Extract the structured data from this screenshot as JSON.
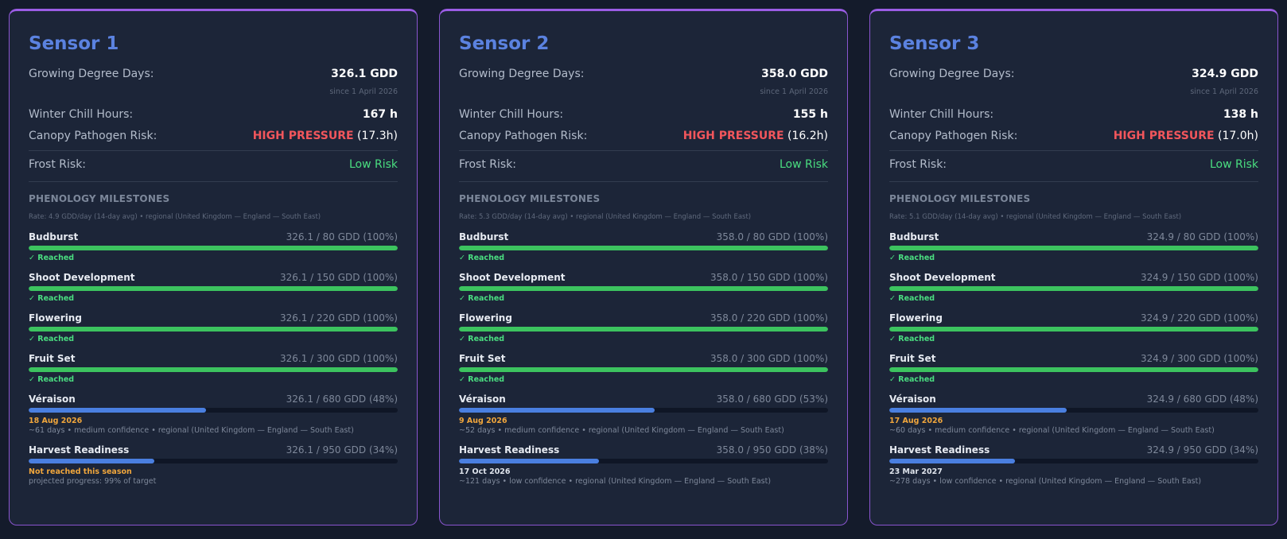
{
  "sensors": [
    {
      "title": "Sensor 1",
      "gdd_label": "Growing Degree Days:",
      "gdd_value": "326.1 GDD",
      "since": "since 1 April 2026",
      "chill_label": "Winter Chill Hours:",
      "chill_value": "167 h",
      "canopy_label": "Canopy Pathogen Risk:",
      "canopy_level": "HIGH PRESSURE",
      "canopy_hours": "(17.3h)",
      "frost_label": "Frost Risk:",
      "frost_value": "Low Risk",
      "section_title": "PHENOLOGY MILESTONES",
      "rate": "Rate: 4.9 GDD/day (14-day avg) • regional (United Kingdom — England — South East)",
      "milestones": [
        {
          "name": "Budburst",
          "progress": "326.1 / 80 GDD (100%)",
          "fraction": 1.0,
          "status": "✓ Reached"
        },
        {
          "name": "Shoot Development",
          "progress": "326.1 / 150 GDD (100%)",
          "fraction": 1.0,
          "status": "✓ Reached"
        },
        {
          "name": "Flowering",
          "progress": "326.1 / 220 GDD (100%)",
          "fraction": 1.0,
          "status": "✓ Reached"
        },
        {
          "name": "Fruit Set",
          "progress": "326.1 / 300 GDD (100%)",
          "fraction": 1.0,
          "status": "✓ Reached"
        },
        {
          "name": "Véraison",
          "progress": "326.1 / 680 GDD (48%)",
          "fraction": 0.48,
          "date": "18 Aug 2026",
          "date_color": "orange",
          "note": "~61 days • medium confidence • regional (United Kingdom — England — South East)"
        },
        {
          "name": "Harvest Readiness",
          "progress": "326.1 / 950 GDD (34%)",
          "fraction": 0.34,
          "date": "Not reached this season",
          "date_color": "orange",
          "note": "projected progress: 99% of target"
        }
      ]
    },
    {
      "title": "Sensor 2",
      "gdd_label": "Growing Degree Days:",
      "gdd_value": "358.0 GDD",
      "since": "since 1 April 2026",
      "chill_label": "Winter Chill Hours:",
      "chill_value": "155 h",
      "canopy_label": "Canopy Pathogen Risk:",
      "canopy_level": "HIGH PRESSURE",
      "canopy_hours": "(16.2h)",
      "frost_label": "Frost Risk:",
      "frost_value": "Low Risk",
      "section_title": "PHENOLOGY MILESTONES",
      "rate": "Rate: 5.3 GDD/day (14-day avg) • regional (United Kingdom — England — South East)",
      "milestones": [
        {
          "name": "Budburst",
          "progress": "358.0 / 80 GDD (100%)",
          "fraction": 1.0,
          "status": "✓ Reached"
        },
        {
          "name": "Shoot Development",
          "progress": "358.0 / 150 GDD (100%)",
          "fraction": 1.0,
          "status": "✓ Reached"
        },
        {
          "name": "Flowering",
          "progress": "358.0 / 220 GDD (100%)",
          "fraction": 1.0,
          "status": "✓ Reached"
        },
        {
          "name": "Fruit Set",
          "progress": "358.0 / 300 GDD (100%)",
          "fraction": 1.0,
          "status": "✓ Reached"
        },
        {
          "name": "Véraison",
          "progress": "358.0 / 680 GDD (53%)",
          "fraction": 0.53,
          "date": "9 Aug 2026",
          "date_color": "orange",
          "note": "~52 days • medium confidence • regional (United Kingdom — England — South East)"
        },
        {
          "name": "Harvest Readiness",
          "progress": "358.0 / 950 GDD (38%)",
          "fraction": 0.38,
          "date": "17 Oct 2026",
          "date_color": "white",
          "note": "~121 days • low confidence • regional (United Kingdom — England — South East)"
        }
      ]
    },
    {
      "title": "Sensor 3",
      "gdd_label": "Growing Degree Days:",
      "gdd_value": "324.9 GDD",
      "since": "since 1 April 2026",
      "chill_label": "Winter Chill Hours:",
      "chill_value": "138 h",
      "canopy_label": "Canopy Pathogen Risk:",
      "canopy_level": "HIGH PRESSURE",
      "canopy_hours": "(17.0h)",
      "frost_label": "Frost Risk:",
      "frost_value": "Low Risk",
      "section_title": "PHENOLOGY MILESTONES",
      "rate": "Rate: 5.1 GDD/day (14-day avg) • regional (United Kingdom — England — South East)",
      "milestones": [
        {
          "name": "Budburst",
          "progress": "324.9 / 80 GDD (100%)",
          "fraction": 1.0,
          "status": "✓ Reached"
        },
        {
          "name": "Shoot Development",
          "progress": "324.9 / 150 GDD (100%)",
          "fraction": 1.0,
          "status": "✓ Reached"
        },
        {
          "name": "Flowering",
          "progress": "324.9 / 220 GDD (100%)",
          "fraction": 1.0,
          "status": "✓ Reached"
        },
        {
          "name": "Fruit Set",
          "progress": "324.9 / 300 GDD (100%)",
          "fraction": 1.0,
          "status": "✓ Reached"
        },
        {
          "name": "Véraison",
          "progress": "324.9 / 680 GDD (48%)",
          "fraction": 0.48,
          "date": "17 Aug 2026",
          "date_color": "orange",
          "note": "~60 days • medium confidence • regional (United Kingdom — England — South East)"
        },
        {
          "name": "Harvest Readiness",
          "progress": "324.9 / 950 GDD (34%)",
          "fraction": 0.34,
          "date": "23 Mar 2027",
          "date_color": "white",
          "note": "~278 days • low confidence • regional (United Kingdom — England — South East)"
        }
      ]
    }
  ]
}
